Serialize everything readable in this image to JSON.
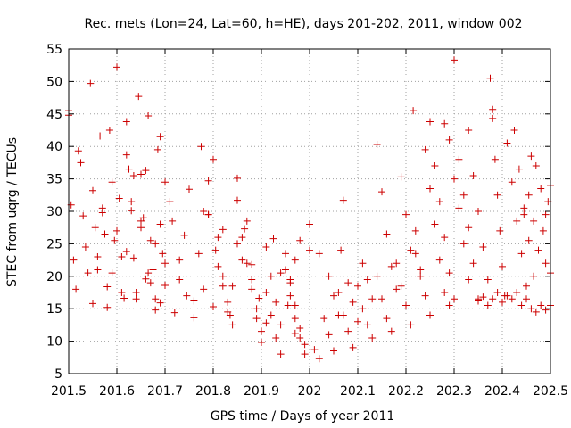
{
  "chart_data": {
    "type": "scatter",
    "title": "Rec. mets (Lon=24, Lat=60, h=HE), days 201-202, 2011, window 002",
    "xlabel": "GPS time / Days of year 2011",
    "ylabel": "STEC from uqrg / TECUs",
    "xlim": [
      201.5,
      202.5
    ],
    "ylim": [
      5,
      55
    ],
    "x_ticks": [
      201.5,
      201.6,
      201.7,
      201.8,
      201.9,
      202,
      202.1,
      202.2,
      202.3,
      202.4,
      202.5
    ],
    "x_tick_labels": [
      "201.5",
      "201.6",
      "201.7",
      "201.8",
      "201.9",
      "202",
      "202.1",
      "202.2",
      "202.3",
      "202.4",
      "202.5"
    ],
    "y_ticks": [
      5,
      10,
      15,
      20,
      25,
      30,
      35,
      40,
      45,
      50,
      55
    ],
    "y_tick_labels": [
      "5",
      "10",
      "15",
      "20",
      "25",
      "30",
      "35",
      "40",
      "45",
      "50",
      "55"
    ],
    "grid": true,
    "marker": "+",
    "marker_color": "#cc0000",
    "series": [
      {
        "points": [
          [
            201.5,
            45.5
          ],
          [
            201.5,
            44.8
          ],
          [
            201.505,
            31
          ],
          [
            201.51,
            22.5
          ],
          [
            201.515,
            18
          ],
          [
            201.52,
            39.3
          ],
          [
            201.525,
            37.5
          ],
          [
            201.53,
            29.3
          ],
          [
            201.535,
            24.5
          ],
          [
            201.54,
            20.5
          ],
          [
            201.545,
            49.7
          ],
          [
            201.55,
            33.2
          ],
          [
            201.555,
            27.5
          ],
          [
            201.56,
            21
          ],
          [
            201.565,
            41.6
          ],
          [
            201.57,
            29.8
          ],
          [
            201.575,
            26.5
          ],
          [
            201.58,
            18.4
          ],
          [
            201.585,
            42.5
          ],
          [
            201.59,
            34.5
          ],
          [
            201.595,
            25.5
          ],
          [
            201.6,
            52.2
          ],
          [
            201.605,
            32
          ],
          [
            201.61,
            23
          ],
          [
            201.615,
            16.6
          ],
          [
            201.62,
            38.7
          ],
          [
            201.625,
            36.5
          ],
          [
            201.63,
            30.1
          ],
          [
            201.635,
            22.8
          ],
          [
            201.64,
            17.5
          ],
          [
            201.645,
            47.7
          ],
          [
            201.65,
            35.7
          ],
          [
            201.655,
            29
          ],
          [
            201.66,
            19.6
          ],
          [
            201.665,
            44.7
          ],
          [
            201.67,
            25.5
          ],
          [
            201.675,
            21
          ],
          [
            201.68,
            16.5
          ],
          [
            201.685,
            39.5
          ],
          [
            201.69,
            28
          ],
          [
            201.695,
            23.5
          ],
          [
            201.7,
            18.6
          ],
          [
            201.55,
            15.8
          ],
          [
            201.56,
            23
          ],
          [
            201.57,
            30.5
          ],
          [
            201.58,
            15.2
          ],
          [
            201.59,
            20.5
          ],
          [
            201.6,
            27
          ],
          [
            201.61,
            17.5
          ],
          [
            201.62,
            23.8
          ],
          [
            201.63,
            31.5
          ],
          [
            201.64,
            16.5
          ],
          [
            201.65,
            28.5
          ],
          [
            201.66,
            36.3
          ],
          [
            201.67,
            19
          ],
          [
            201.68,
            25
          ],
          [
            201.69,
            15.9
          ],
          [
            201.7,
            22
          ],
          [
            201.71,
            31.5
          ],
          [
            201.72,
            14.4
          ],
          [
            201.73,
            19.5
          ],
          [
            201.74,
            26.3
          ],
          [
            201.75,
            33.4
          ],
          [
            201.76,
            16.2
          ],
          [
            201.77,
            23.5
          ],
          [
            201.78,
            18
          ],
          [
            201.79,
            29.5
          ],
          [
            201.8,
            15.3
          ],
          [
            201.81,
            21.5
          ],
          [
            201.82,
            27.2
          ],
          [
            201.83,
            14.5
          ],
          [
            201.84,
            18.5
          ],
          [
            201.62,
            43.8
          ],
          [
            201.635,
            35.5
          ],
          [
            201.65,
            27.5
          ],
          [
            201.665,
            20.5
          ],
          [
            201.68,
            14.8
          ],
          [
            201.69,
            41.5
          ],
          [
            201.7,
            34.5
          ],
          [
            201.715,
            28.5
          ],
          [
            201.73,
            22.5
          ],
          [
            201.745,
            17
          ],
          [
            201.76,
            13.6
          ],
          [
            201.775,
            40
          ],
          [
            201.79,
            29.5
          ],
          [
            201.805,
            24
          ],
          [
            201.82,
            18.5
          ],
          [
            201.835,
            14
          ],
          [
            201.85,
            35.1
          ],
          [
            201.865,
            27.3
          ],
          [
            201.88,
            21.8
          ],
          [
            201.895,
            16.6
          ],
          [
            201.91,
            12.8
          ],
          [
            201.925,
            25.8
          ],
          [
            201.94,
            20.5
          ],
          [
            201.955,
            15.5
          ],
          [
            201.97,
            11.2
          ],
          [
            201.78,
            30
          ],
          [
            201.79,
            34.7
          ],
          [
            201.8,
            38
          ],
          [
            201.81,
            26
          ],
          [
            201.82,
            20
          ],
          [
            201.83,
            16
          ],
          [
            201.84,
            12.5
          ],
          [
            201.85,
            25
          ],
          [
            201.86,
            22.5
          ],
          [
            201.87,
            28.5
          ],
          [
            201.88,
            19.5
          ],
          [
            201.89,
            15
          ],
          [
            201.9,
            11.5
          ],
          [
            201.91,
            24.5
          ],
          [
            201.92,
            20
          ],
          [
            201.93,
            16
          ],
          [
            201.94,
            12.5
          ],
          [
            201.95,
            23.5
          ],
          [
            201.96,
            19
          ],
          [
            201.97,
            15.5
          ],
          [
            201.98,
            12
          ],
          [
            201.99,
            9.5
          ],
          [
            202,
            24
          ],
          [
            201.85,
            31.7
          ],
          [
            201.86,
            26
          ],
          [
            201.87,
            22
          ],
          [
            201.88,
            18
          ],
          [
            201.89,
            13.5
          ],
          [
            201.9,
            9.8
          ],
          [
            201.91,
            17.5
          ],
          [
            201.92,
            14
          ],
          [
            201.93,
            10.5
          ],
          [
            201.94,
            8
          ],
          [
            201.95,
            21
          ],
          [
            201.96,
            17
          ],
          [
            201.97,
            13.5
          ],
          [
            201.98,
            10.5
          ],
          [
            201.99,
            8
          ],
          [
            202,
            28
          ],
          [
            201.98,
            25.5
          ],
          [
            201.97,
            22.5
          ],
          [
            201.96,
            19.5
          ],
          [
            202.01,
            8.7
          ],
          [
            202.02,
            7.3
          ],
          [
            202.03,
            13.5
          ],
          [
            202.04,
            11
          ],
          [
            202.05,
            8.5
          ],
          [
            202.06,
            17.5
          ],
          [
            202.07,
            14
          ],
          [
            202.08,
            11.5
          ],
          [
            202.09,
            9
          ],
          [
            202.1,
            18.5
          ],
          [
            202.11,
            15
          ],
          [
            202.12,
            12.5
          ],
          [
            202.13,
            10.5
          ],
          [
            202.14,
            20
          ],
          [
            202.15,
            16.5
          ],
          [
            202.16,
            13.5
          ],
          [
            202.17,
            11.5
          ],
          [
            202.18,
            22
          ],
          [
            202.19,
            18.5
          ],
          [
            202.2,
            15.5
          ],
          [
            202.21,
            12.5
          ],
          [
            202.22,
            23.5
          ],
          [
            202.23,
            20
          ],
          [
            202.24,
            17
          ],
          [
            202.25,
            14
          ],
          [
            202.02,
            23.5
          ],
          [
            202.04,
            20
          ],
          [
            202.05,
            17
          ],
          [
            202.06,
            14
          ],
          [
            202.065,
            24
          ],
          [
            202.07,
            31.7
          ],
          [
            202.08,
            19
          ],
          [
            202.09,
            16
          ],
          [
            202.1,
            13
          ],
          [
            202.11,
            22
          ],
          [
            202.12,
            19.5
          ],
          [
            202.13,
            16.5
          ],
          [
            202.14,
            40.3
          ],
          [
            202.15,
            33
          ],
          [
            202.16,
            26.5
          ],
          [
            202.17,
            21.5
          ],
          [
            202.18,
            18
          ],
          [
            202.19,
            35.3
          ],
          [
            202.2,
            29.5
          ],
          [
            202.21,
            24
          ],
          [
            202.215,
            45.5
          ],
          [
            202.22,
            27
          ],
          [
            202.23,
            21
          ],
          [
            202.24,
            39.5
          ],
          [
            202.25,
            33.5
          ],
          [
            202.26,
            28
          ],
          [
            202.27,
            22.5
          ],
          [
            202.28,
            17.5
          ],
          [
            202.29,
            15.5
          ],
          [
            202.25,
            43.8
          ],
          [
            202.26,
            37
          ],
          [
            202.27,
            31.5
          ],
          [
            202.28,
            26
          ],
          [
            202.29,
            20.5
          ],
          [
            202.3,
            16.5
          ],
          [
            202.28,
            43.5
          ],
          [
            202.29,
            41
          ],
          [
            202.3,
            35
          ],
          [
            202.31,
            30.5
          ],
          [
            202.32,
            25
          ],
          [
            202.33,
            19.5
          ],
          [
            202.3,
            53.3
          ],
          [
            202.31,
            38
          ],
          [
            202.32,
            32.5
          ],
          [
            202.33,
            27.5
          ],
          [
            202.34,
            22
          ],
          [
            202.35,
            16.5
          ],
          [
            202.33,
            42.5
          ],
          [
            202.34,
            35.5
          ],
          [
            202.35,
            30
          ],
          [
            202.36,
            24.5
          ],
          [
            202.37,
            19.5
          ],
          [
            202.375,
            50.5
          ],
          [
            202.38,
            45.7
          ],
          [
            202.38,
            44.3
          ],
          [
            202.385,
            38
          ],
          [
            202.39,
            32.5
          ],
          [
            202.395,
            27
          ],
          [
            202.4,
            21.5
          ],
          [
            202.405,
            17
          ],
          [
            202.41,
            40.5
          ],
          [
            202.42,
            34.5
          ],
          [
            202.43,
            28.5
          ],
          [
            202.44,
            23.5
          ],
          [
            202.45,
            18.5
          ],
          [
            202.425,
            42.5
          ],
          [
            202.435,
            36.5
          ],
          [
            202.445,
            30.5
          ],
          [
            202.455,
            25.5
          ],
          [
            202.465,
            20
          ],
          [
            202.35,
            16.2
          ],
          [
            202.36,
            16.8
          ],
          [
            202.37,
            15.5
          ],
          [
            202.38,
            16.5
          ],
          [
            202.39,
            17.5
          ],
          [
            202.4,
            16
          ],
          [
            202.41,
            17
          ],
          [
            202.42,
            16.5
          ],
          [
            202.43,
            17.5
          ],
          [
            202.44,
            15.5
          ],
          [
            202.45,
            16.5
          ],
          [
            202.46,
            15
          ],
          [
            202.47,
            14.5
          ],
          [
            202.48,
            15.5
          ],
          [
            202.49,
            14.8
          ],
          [
            202.5,
            15.5
          ],
          [
            202.46,
            38.5
          ],
          [
            202.47,
            37
          ],
          [
            202.48,
            33.5
          ],
          [
            202.49,
            29.5
          ],
          [
            202.5,
            34
          ],
          [
            202.495,
            31.5
          ],
          [
            202.485,
            27
          ],
          [
            202.475,
            24
          ],
          [
            202.465,
            28.5
          ],
          [
            202.455,
            32.5
          ],
          [
            202.445,
            29.5
          ],
          [
            202.49,
            22
          ],
          [
            202.5,
            20.5
          ]
        ]
      }
    ]
  }
}
